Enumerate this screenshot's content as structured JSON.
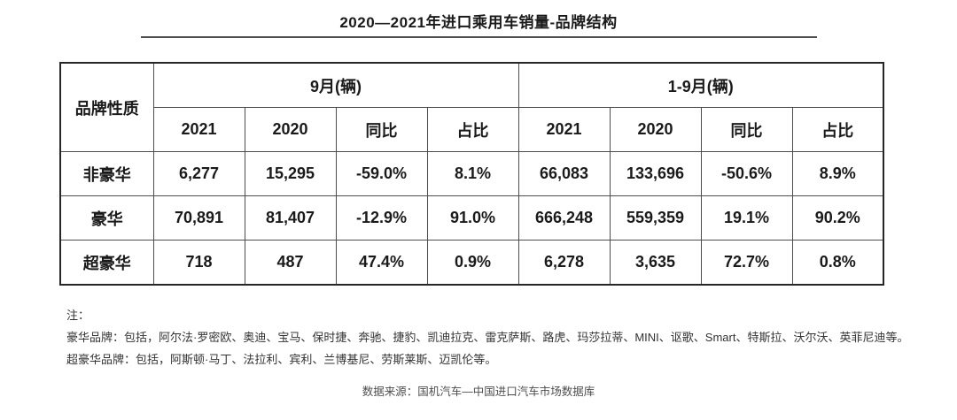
{
  "page": {
    "title": "2020—2021年进口乘用车销量-品牌结构"
  },
  "table": {
    "corner_header": "品牌性质",
    "column_groups": [
      {
        "label": "9月(辆)"
      },
      {
        "label": "1-9月(辆)"
      }
    ],
    "sub_headers": [
      "2021",
      "2020",
      "同比",
      "占比"
    ],
    "rows": [
      {
        "label": "非豪华",
        "sep": [
          "6,277",
          "15,295",
          "-59.0%",
          "8.1%"
        ],
        "ytd": [
          "66,083",
          "133,696",
          "-50.6%",
          "8.9%"
        ]
      },
      {
        "label": "豪华",
        "sep": [
          "70,891",
          "81,407",
          "-12.9%",
          "91.0%"
        ],
        "ytd": [
          "666,248",
          "559,359",
          "19.1%",
          "90.2%"
        ]
      },
      {
        "label": "超豪华",
        "sep": [
          "718",
          "487",
          "47.4%",
          "0.9%"
        ],
        "ytd": [
          "6,278",
          "3,635",
          "72.7%",
          "0.8%"
        ]
      }
    ]
  },
  "notes": {
    "label": "注：",
    "luxury": "豪华品牌：包括，阿尔法·罗密欧、奥迪、宝马、保时捷、奔驰、捷豹、凯迪拉克、雷克萨斯、路虎、玛莎拉蒂、MINI、讴歌、Smart、特斯拉、沃尔沃、英菲尼迪等。",
    "ultra_luxury": "超豪华品牌：包括，阿斯顿·马丁、法拉利、宾利、兰博基尼、劳斯莱斯、迈凯伦等。"
  },
  "source": "数据来源：国机汽车—中国进口汽车市场数据库",
  "colors": {
    "text": "#1a1a1a",
    "border_outer": "#262626",
    "border_inner": "#4d4d4d",
    "title_rule": "#4d4d4d",
    "note_text": "#333333",
    "source_text": "#4d4d4d",
    "background": "#ffffff"
  }
}
